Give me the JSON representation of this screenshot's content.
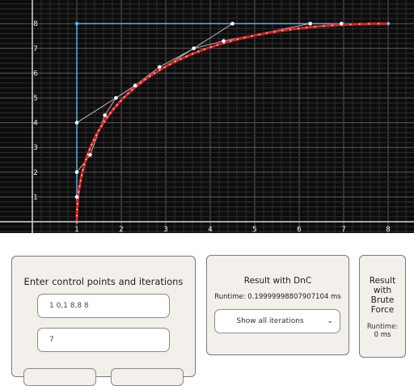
{
  "chart_data": {
    "type": "line",
    "xlim": [
      1,
      8
    ],
    "ylim": [
      0,
      8
    ],
    "x_ticks": [
      1,
      2,
      3,
      4,
      5,
      6,
      7,
      8
    ],
    "y_ticks": [
      1,
      2,
      3,
      4,
      5,
      6,
      7,
      8
    ],
    "grid": true,
    "control_points": [
      [
        1,
        0
      ],
      [
        1,
        8
      ],
      [
        8,
        8
      ]
    ],
    "iteration_points": [
      [
        1,
        1
      ],
      [
        1,
        2
      ],
      [
        1,
        4
      ],
      [
        1.3,
        2.7
      ],
      [
        1.63,
        4.3
      ],
      [
        1.88,
        5
      ],
      [
        2.31,
        5.5
      ],
      [
        2.86,
        6.25
      ],
      [
        3.63,
        7
      ],
      [
        4.3,
        7.3
      ],
      [
        4.5,
        8
      ],
      [
        6.25,
        8
      ],
      [
        6.95,
        8
      ]
    ],
    "curve": {
      "color": "#e02020",
      "formula": "quadratic bezier of control_points"
    },
    "colors": {
      "background": "#0c0c0c",
      "grid": "#4a4a4a",
      "axis": "#d8d8d8",
      "control_polygon": "#5aaee8",
      "iteration_lines": "#b8b8b8",
      "points": "#ffffff",
      "curve": "#e02020"
    }
  },
  "input_panel": {
    "title": "Enter control points and iterations",
    "points_value": "1 0,1 8,8 8",
    "iterations_value": "7"
  },
  "dnc_panel": {
    "title": "Result with DnC",
    "runtime": "Runtime: 0.19999998807907104 ms",
    "select_value": "Show all iterations"
  },
  "brute_panel": {
    "title": "Result with Brute Force",
    "title_lines": [
      "Result",
      "with",
      "Brute",
      "Force"
    ],
    "runtime_label": "Runtime:",
    "runtime_value": "0 ms"
  }
}
